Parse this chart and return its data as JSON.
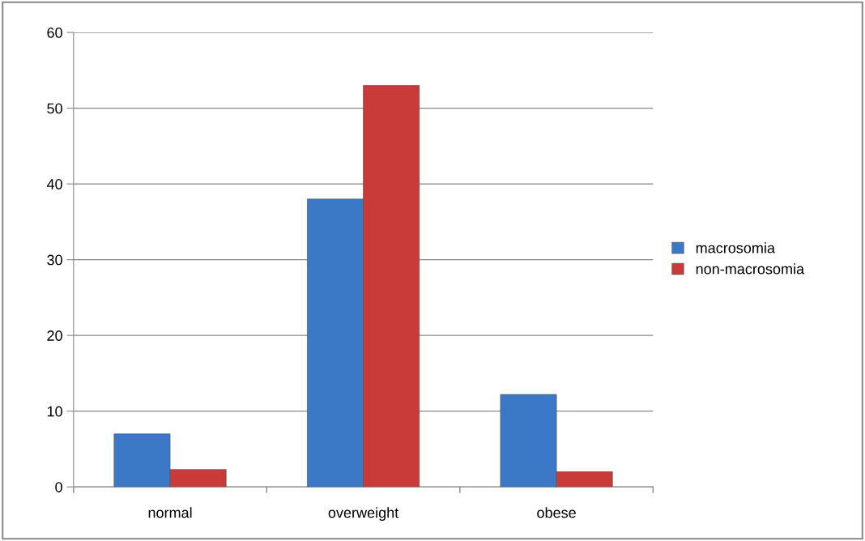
{
  "chart_data": {
    "type": "bar",
    "categories": [
      "normal",
      "overweight",
      "obese"
    ],
    "series": [
      {
        "name": "macrosomia",
        "color": "#3b78c6",
        "values": [
          7,
          38,
          12.2
        ]
      },
      {
        "name": "non-macrosomia",
        "color": "#c93b38",
        "values": [
          2.3,
          53,
          2
        ]
      }
    ],
    "ylim": [
      0,
      60
    ],
    "yticks": [
      0,
      10,
      20,
      30,
      40,
      50,
      60
    ],
    "grid": "y",
    "legend": "right"
  }
}
